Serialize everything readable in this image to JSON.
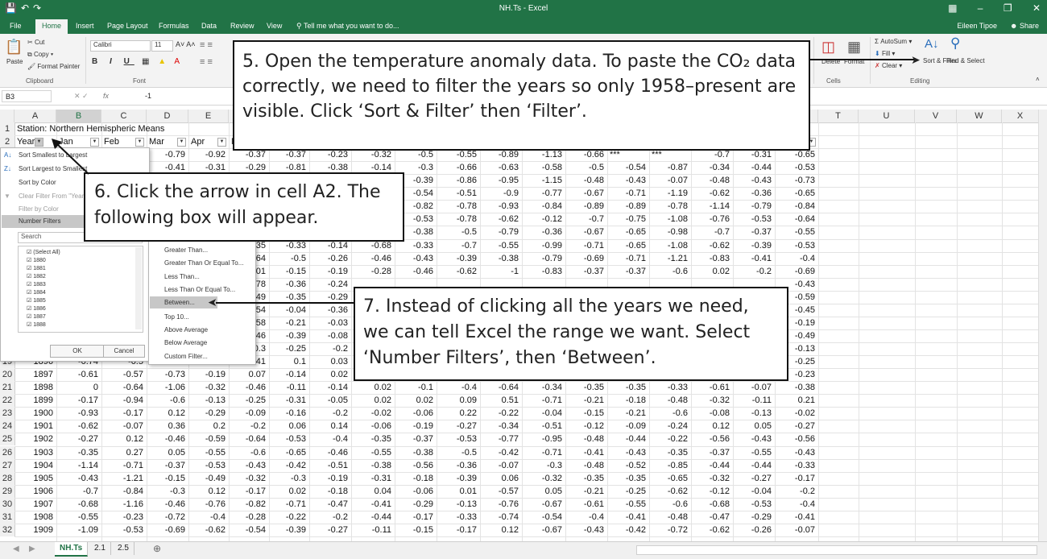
{
  "window": {
    "title": "NH.Ts - Excel",
    "user": "Eileen Tipoe",
    "share": "Share",
    "tell_me": "Tell me what you want to do..."
  },
  "tabs": [
    "File",
    "Home",
    "Insert",
    "Page Layout",
    "Formulas",
    "Data",
    "Review",
    "View"
  ],
  "active_tab": "Home",
  "ribbon": {
    "paste": "Paste",
    "cut": "Cut",
    "copy": "Copy",
    "format_painter": "Format Painter",
    "clipboard": "Clipboard",
    "font_name": "Calibri",
    "font_size": "11",
    "font_group": "Font",
    "autosum": "AutoSum",
    "fill": "Fill",
    "clear": "Clear",
    "sort_filter": "Sort & Filter",
    "find_select": "Find & Select",
    "editing": "Editing",
    "cells": "Cells",
    "delete": "Delete",
    "format": "Format"
  },
  "formula_bar": {
    "cell_ref": "B3",
    "fx": "fx",
    "content": "-1"
  },
  "columns": [
    "A",
    "B",
    "C",
    "D",
    "E",
    "F",
    "G",
    "H",
    "I",
    "J",
    "K",
    "L",
    "M",
    "N",
    "O",
    "P",
    "Q",
    "R",
    "S",
    "T",
    "U",
    "V",
    "W",
    "X"
  ],
  "row1_title": "Station: Northern Hemispheric Means",
  "header_row": [
    "Year",
    "Jan",
    "Feb",
    "Mar",
    "Apr",
    "May",
    "Jun",
    "Jul",
    "Aug",
    "Sep",
    "Oct",
    "Nov",
    "Dec",
    "J-D",
    "D-N",
    "DJF",
    "MAM",
    "JJA",
    "SON"
  ],
  "visible_partial_rows": [
    {
      "row": "3",
      "values": [
        "-0.79",
        "-0.92",
        "-0.37",
        "-0.37",
        "-0.23",
        "-0.32",
        "-0.5",
        "-0.55",
        "-0.89",
        "-1.13",
        "-0.66",
        "***",
        "***",
        "-0.7",
        "-0.31",
        "-0.65"
      ]
    },
    {
      "row": "4",
      "values": [
        "-0.41",
        "-0.31",
        "-0.29",
        "-0.81",
        "-0.38",
        "-0.14",
        "-0.3",
        "-0.66",
        "-0.63",
        "-0.58",
        "-0.5",
        "-0.54",
        "-0.87",
        "-0.34",
        "-0.44",
        "-0.53"
      ]
    },
    {
      "row": "5",
      "values": [
        "-0.39",
        "-0.86",
        "-0.95",
        "-1.15",
        "-0.48",
        "-0.43",
        "-0.07",
        "-0.48",
        "-0.43",
        "-0.73"
      ]
    },
    {
      "row": "6",
      "values": [
        "-0.54",
        "-0.51",
        "-0.9",
        "-0.77",
        "-0.67",
        "-0.71",
        "-1.19",
        "-0.62",
        "-0.36",
        "-0.65"
      ]
    },
    {
      "row": "7",
      "values": [
        "-0.82",
        "-0.78",
        "-0.93",
        "-0.84",
        "-0.89",
        "-0.89",
        "-0.78",
        "-1.14",
        "-0.79",
        "-0.84"
      ]
    },
    {
      "row": "8",
      "values": [
        "-0.53",
        "-0.78",
        "-0.62",
        "-0.12",
        "-0.7",
        "-0.75",
        "-1.08",
        "-0.76",
        "-0.53",
        "-0.64"
      ]
    },
    {
      "row": "9",
      "values": [
        "-0.38",
        "-0.5",
        "-0.79",
        "-0.36",
        "-0.67",
        "-0.65",
        "-0.98",
        "-0.7",
        "-0.37",
        "-0.55"
      ]
    },
    {
      "row": "10",
      "values": [
        ".35",
        "-0.33",
        "-0.14",
        "-0.68",
        "-0.33",
        "-0.7",
        "-0.55",
        "-0.99",
        "-0.71",
        "-0.65",
        "-1.08",
        "-0.62",
        "-0.39",
        "-0.53"
      ]
    },
    {
      "row": "11",
      "values": [
        ".64",
        "-0.5",
        "-0.26",
        "-0.46",
        "-0.43",
        "-0.39",
        "-0.38",
        "-0.79",
        "-0.69",
        "-0.71",
        "-1.21",
        "-0.83",
        "-0.41",
        "-0.4"
      ]
    },
    {
      "row": "12",
      "values": [
        ".01",
        "-0.15",
        "-0.19",
        "-0.28",
        "-0.46",
        "-0.62",
        "-1",
        "-0.83",
        "-0.37",
        "-0.37",
        "-0.6",
        "0.02",
        "-0.2",
        "-0.69"
      ]
    },
    {
      "row": "13",
      "values": [
        ".78",
        "-0.36",
        "-0.24",
        "-0.43"
      ]
    },
    {
      "row": "14",
      "values": [
        ".49",
        "-0.35",
        "-0.29",
        "-0.59"
      ]
    },
    {
      "row": "15",
      "values": [
        ".54",
        "-0.04",
        "-0.36",
        "-0.45"
      ]
    },
    {
      "row": "16",
      "values": [
        ".58",
        "-0.21",
        "-0.03",
        "-0.19"
      ]
    },
    {
      "row": "17",
      "values": [
        ".46",
        "-0.39",
        "-0.08",
        "-0.49"
      ]
    },
    {
      "row": "18",
      "values": [
        "-0.3",
        "-0.25",
        "-0.2",
        "-0.13"
      ]
    },
    {
      "row": "19",
      "values": [
        "1896",
        "-0.74",
        "-0.5",
        "-0.98",
        "-0.96",
        "-0.41",
        "0.1",
        "0.03",
        "-0.25"
      ]
    }
  ],
  "rows": [
    {
      "row": "20",
      "values": [
        "1897",
        "-0.61",
        "-0.57",
        "-0.73",
        "-0.19",
        "0.07",
        "-0.14",
        "0.02",
        "",
        "",
        "",
        "",
        "",
        "",
        "",
        "",
        "",
        "",
        "-0.23"
      ]
    },
    {
      "row": "21",
      "values": [
        "1898",
        "0",
        "-0.64",
        "-1.06",
        "-0.32",
        "-0.46",
        "-0.11",
        "-0.14",
        "0.02",
        "-0.1",
        "-0.4",
        "-0.64",
        "-0.34",
        "-0.35",
        "-0.35",
        "-0.33",
        "-0.61",
        "-0.07",
        "-0.38"
      ]
    },
    {
      "row": "22",
      "values": [
        "1899",
        "-0.17",
        "-0.94",
        "-0.6",
        "-0.13",
        "-0.25",
        "-0.31",
        "-0.05",
        "0.02",
        "0.02",
        "0.09",
        "0.51",
        "-0.71",
        "-0.21",
        "-0.18",
        "-0.48",
        "-0.32",
        "-0.11",
        "0.21"
      ]
    },
    {
      "row": "23",
      "values": [
        "1900",
        "-0.93",
        "-0.17",
        "0.12",
        "-0.29",
        "-0.09",
        "-0.16",
        "-0.2",
        "-0.02",
        "-0.06",
        "0.22",
        "-0.22",
        "-0.04",
        "-0.15",
        "-0.21",
        "-0.6",
        "-0.08",
        "-0.13",
        "-0.02"
      ]
    },
    {
      "row": "24",
      "values": [
        "1901",
        "-0.62",
        "-0.07",
        "0.36",
        "0.2",
        "-0.2",
        "0.06",
        "0.14",
        "-0.06",
        "-0.19",
        "-0.27",
        "-0.34",
        "-0.51",
        "-0.12",
        "-0.09",
        "-0.24",
        "0.12",
        "0.05",
        "-0.27"
      ]
    },
    {
      "row": "25",
      "values": [
        "1902",
        "-0.27",
        "0.12",
        "-0.46",
        "-0.59",
        "-0.64",
        "-0.53",
        "-0.4",
        "-0.35",
        "-0.37",
        "-0.53",
        "-0.77",
        "-0.95",
        "-0.48",
        "-0.44",
        "-0.22",
        "-0.56",
        "-0.43",
        "-0.56"
      ]
    },
    {
      "row": "26",
      "values": [
        "1903",
        "-0.35",
        "0.27",
        "0.05",
        "-0.55",
        "-0.6",
        "-0.65",
        "-0.46",
        "-0.55",
        "-0.38",
        "-0.5",
        "-0.42",
        "-0.71",
        "-0.41",
        "-0.43",
        "-0.35",
        "-0.37",
        "-0.55",
        "-0.43"
      ]
    },
    {
      "row": "27",
      "values": [
        "1904",
        "-1.14",
        "-0.71",
        "-0.37",
        "-0.53",
        "-0.43",
        "-0.42",
        "-0.51",
        "-0.38",
        "-0.56",
        "-0.36",
        "-0.07",
        "-0.3",
        "-0.48",
        "-0.52",
        "-0.85",
        "-0.44",
        "-0.44",
        "-0.33"
      ]
    },
    {
      "row": "28",
      "values": [
        "1905",
        "-0.43",
        "-1.21",
        "-0.15",
        "-0.49",
        "-0.32",
        "-0.3",
        "-0.19",
        "-0.31",
        "-0.18",
        "-0.39",
        "0.06",
        "-0.32",
        "-0.35",
        "-0.35",
        "-0.65",
        "-0.32",
        "-0.27",
        "-0.17"
      ]
    },
    {
      "row": "29",
      "values": [
        "1906",
        "-0.7",
        "-0.84",
        "-0.3",
        "0.12",
        "-0.17",
        "0.02",
        "-0.18",
        "0.04",
        "-0.06",
        "0.01",
        "-0.57",
        "0.05",
        "-0.21",
        "-0.25",
        "-0.62",
        "-0.12",
        "-0.04",
        "-0.2"
      ]
    },
    {
      "row": "30",
      "values": [
        "1907",
        "-0.68",
        "-1.16",
        "-0.46",
        "-0.76",
        "-0.82",
        "-0.71",
        "-0.47",
        "-0.41",
        "-0.29",
        "-0.13",
        "-0.76",
        "-0.67",
        "-0.61",
        "-0.55",
        "-0.6",
        "-0.68",
        "-0.53",
        "-0.4"
      ]
    },
    {
      "row": "31",
      "values": [
        "1908",
        "-0.55",
        "-0.23",
        "-0.72",
        "-0.4",
        "-0.28",
        "-0.22",
        "-0.2",
        "-0.44",
        "-0.17",
        "-0.33",
        "-0.74",
        "-0.54",
        "-0.4",
        "-0.41",
        "-0.48",
        "-0.47",
        "-0.29",
        "-0.41"
      ]
    },
    {
      "row": "32",
      "values": [
        "1909",
        "-1.09",
        "-0.53",
        "-0.69",
        "-0.62",
        "-0.54",
        "-0.39",
        "-0.27",
        "-0.11",
        "-0.15",
        "-0.17",
        "0.12",
        "-0.67",
        "-0.43",
        "-0.42",
        "-0.72",
        "-0.62",
        "-0.26",
        "-0.07"
      ]
    }
  ],
  "filter_menu": {
    "items": [
      "Sort Smallest to Largest",
      "Sort Largest to Smallest",
      "Sort by Color",
      "Clear Filter From \"Year\"",
      "Filter by Color",
      "Number Filters"
    ],
    "search_placeholder": "Search",
    "checklist": [
      "(Select All)",
      "1880",
      "1881",
      "1882",
      "1883",
      "1884",
      "1885",
      "1886",
      "1887",
      "1888"
    ],
    "ok": "OK",
    "cancel": "Cancel"
  },
  "number_filters_submenu": [
    "Equals...",
    "Does Not Equal...",
    "Greater Than...",
    "Greater Than Or Equal To...",
    "Less Than...",
    "Less Than Or Equal To...",
    "Between...",
    "Top 10...",
    "Above Average",
    "Below Average",
    "Custom Filter..."
  ],
  "sheet_tabs": [
    "NH.Ts",
    "2.1",
    "2.5"
  ],
  "active_sheet": "NH.Ts",
  "callouts": {
    "step5": "5. Open the temperature anomaly data. To paste the CO₂ data correctly, we need to filter the years so only 1958–present are visible. Click ‘Sort & Filter’ then ‘Filter’.",
    "step6": "6. Click the arrow in cell A2. The following box will appear.",
    "step7": "7. Instead of clicking all the years we need, we can tell Excel the range we want. Select ‘Number Filters’, then ‘Between’."
  },
  "colors": {
    "excel_green": "#217346",
    "selection": "#d2d2d2",
    "highlight": "#c7c7c7"
  }
}
